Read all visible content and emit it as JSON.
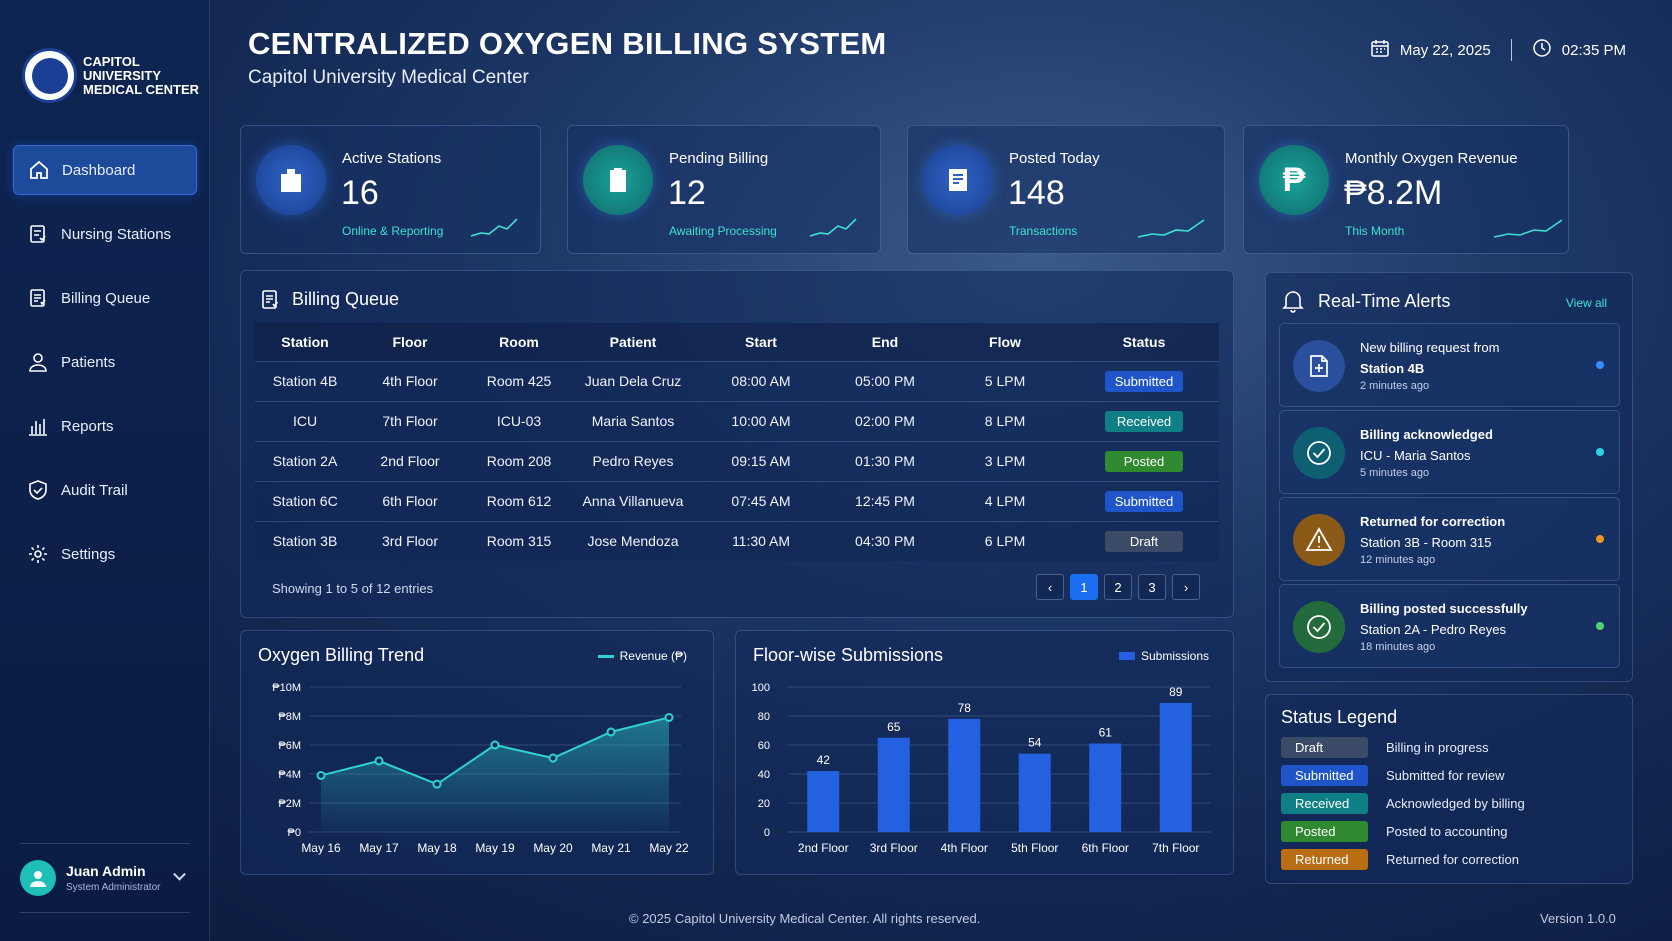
{
  "brand": {
    "name_lines": [
      "CAPITOL",
      "UNIVERSITY",
      "MEDICAL CENTER"
    ]
  },
  "header": {
    "title": "CENTRALIZED OXYGEN BILLING SYSTEM",
    "subtitle": "Capitol University Medical Center",
    "date": "May 22, 2025",
    "time": "02:35 PM"
  },
  "sidebar": {
    "items": [
      {
        "label": "Dashboard",
        "icon": "home-icon"
      },
      {
        "label": "Nursing Stations",
        "icon": "clipboard-icon"
      },
      {
        "label": "Billing Queue",
        "icon": "receipt-icon"
      },
      {
        "label": "Patients",
        "icon": "user-icon"
      },
      {
        "label": "Reports",
        "icon": "bar-chart-icon"
      },
      {
        "label": "Audit Trail",
        "icon": "shield-check-icon"
      },
      {
        "label": "Settings",
        "icon": "gear-icon"
      }
    ]
  },
  "user": {
    "name": "Juan Admin",
    "role": "System Administrator"
  },
  "stats": [
    {
      "label": "Active Stations",
      "value": "16",
      "sub": "Online & Reporting",
      "icon": "hospital-building-icon"
    },
    {
      "label": "Pending Billing",
      "value": "12",
      "sub": "Awaiting Processing",
      "icon": "clipboard-list-icon"
    },
    {
      "label": "Posted Today",
      "value": "148",
      "sub": "Transactions",
      "icon": "document-lines-icon"
    },
    {
      "label": "Monthly Oxygen Revenue",
      "value": "₱8.2M",
      "sub": "This Month",
      "icon": "peso-icon"
    }
  ],
  "billing_queue": {
    "title": "Billing Queue",
    "columns": [
      "Station",
      "Floor",
      "Room",
      "Patient",
      "Start",
      "End",
      "Flow",
      "Status"
    ],
    "rows": [
      [
        "Station 4B",
        "4th Floor",
        "Room 425",
        "Juan Dela Cruz",
        "08:00 AM",
        "05:00 PM",
        "5 LPM",
        "Submitted"
      ],
      [
        "ICU",
        "7th Floor",
        "ICU-03",
        "Maria Santos",
        "10:00 AM",
        "02:00 PM",
        "8 LPM",
        "Received"
      ],
      [
        "Station 2A",
        "2nd Floor",
        "Room 208",
        "Pedro Reyes",
        "09:15 AM",
        "01:30 PM",
        "3 LPM",
        "Posted"
      ],
      [
        "Station 6C",
        "6th Floor",
        "Room 612",
        "Anna Villanueva",
        "07:45 AM",
        "12:45 PM",
        "4 LPM",
        "Submitted"
      ],
      [
        "Station 3B",
        "3rd Floor",
        "Room 315",
        "Jose Mendoza",
        "11:30 AM",
        "04:30 PM",
        "6 LPM",
        "Draft"
      ]
    ],
    "showing": "Showing 1 to 5 of 12 entries",
    "pages": [
      "1",
      "2",
      "3"
    ],
    "current_page": "1"
  },
  "status_colors": {
    "Draft": "#3b4a66",
    "Submitted": "#1f55c9",
    "Received": "#0f7f86",
    "Posted": "#2f8a2f",
    "Returned": "#b86d12"
  },
  "alerts": {
    "title": "Real-Time Alerts",
    "view_all": "View all",
    "items": [
      {
        "title": "New billing request from",
        "line2": "Station 4B",
        "time": "2 minutes ago",
        "icon": "document-add-icon",
        "color": "#2a4f9c",
        "dot": "#3b8bff",
        "bold": false
      },
      {
        "title": "Billing acknowledged",
        "line2": "ICU - Maria Santos",
        "time": "5 minutes ago",
        "icon": "check-circle-icon",
        "color": "#0e5f72",
        "dot": "#2fd3e0",
        "bold": true
      },
      {
        "title": "Returned for correction",
        "line2": "Station 3B - Room 315",
        "time": "12 minutes ago",
        "icon": "warning-icon",
        "color": "#8a5a16",
        "dot": "#f0952a",
        "bold": true
      },
      {
        "title": "Billing posted successfully",
        "line2": "Station 2A - Pedro Reyes",
        "time": "18 minutes ago",
        "icon": "check-circle-icon",
        "color": "#236b3c",
        "dot": "#4fd36a",
        "bold": true
      }
    ]
  },
  "status_legend": {
    "title": "Status Legend",
    "items": [
      {
        "status": "Draft",
        "desc": "Billing in progress"
      },
      {
        "status": "Submitted",
        "desc": "Submitted for review"
      },
      {
        "status": "Received",
        "desc": "Acknowledged by billing"
      },
      {
        "status": "Posted",
        "desc": "Posted to accounting"
      },
      {
        "status": "Returned",
        "desc": "Returned for correction"
      }
    ]
  },
  "chart_data": [
    {
      "type": "line",
      "title": "Oxygen Billing Trend",
      "legend": "Revenue (₱)",
      "x": [
        "May 16",
        "May 17",
        "May 18",
        "May 19",
        "May 20",
        "May 21",
        "May 22"
      ],
      "values": [
        3.9,
        4.9,
        3.3,
        6.0,
        5.1,
        6.9,
        7.9
      ],
      "yticks": [
        "₱0",
        "₱2M",
        "₱4M",
        "₱6M",
        "₱8M",
        "₱10M"
      ],
      "ylim": [
        0,
        10
      ],
      "color": "#2fd3d0"
    },
    {
      "type": "bar",
      "title": "Floor-wise Submissions",
      "legend": "Submissions",
      "categories": [
        "2nd Floor",
        "3rd Floor",
        "4th Floor",
        "5th Floor",
        "6th Floor",
        "7th Floor"
      ],
      "values": [
        42,
        65,
        78,
        54,
        61,
        89
      ],
      "yticks": [
        "0",
        "20",
        "40",
        "60",
        "80",
        "100"
      ],
      "ylim": [
        0,
        100
      ],
      "color": "#2461e0"
    }
  ],
  "footer": {
    "copyright": "© 2025 Capitol University Medical Center. All rights reserved.",
    "version": "Version 1.0.0"
  }
}
